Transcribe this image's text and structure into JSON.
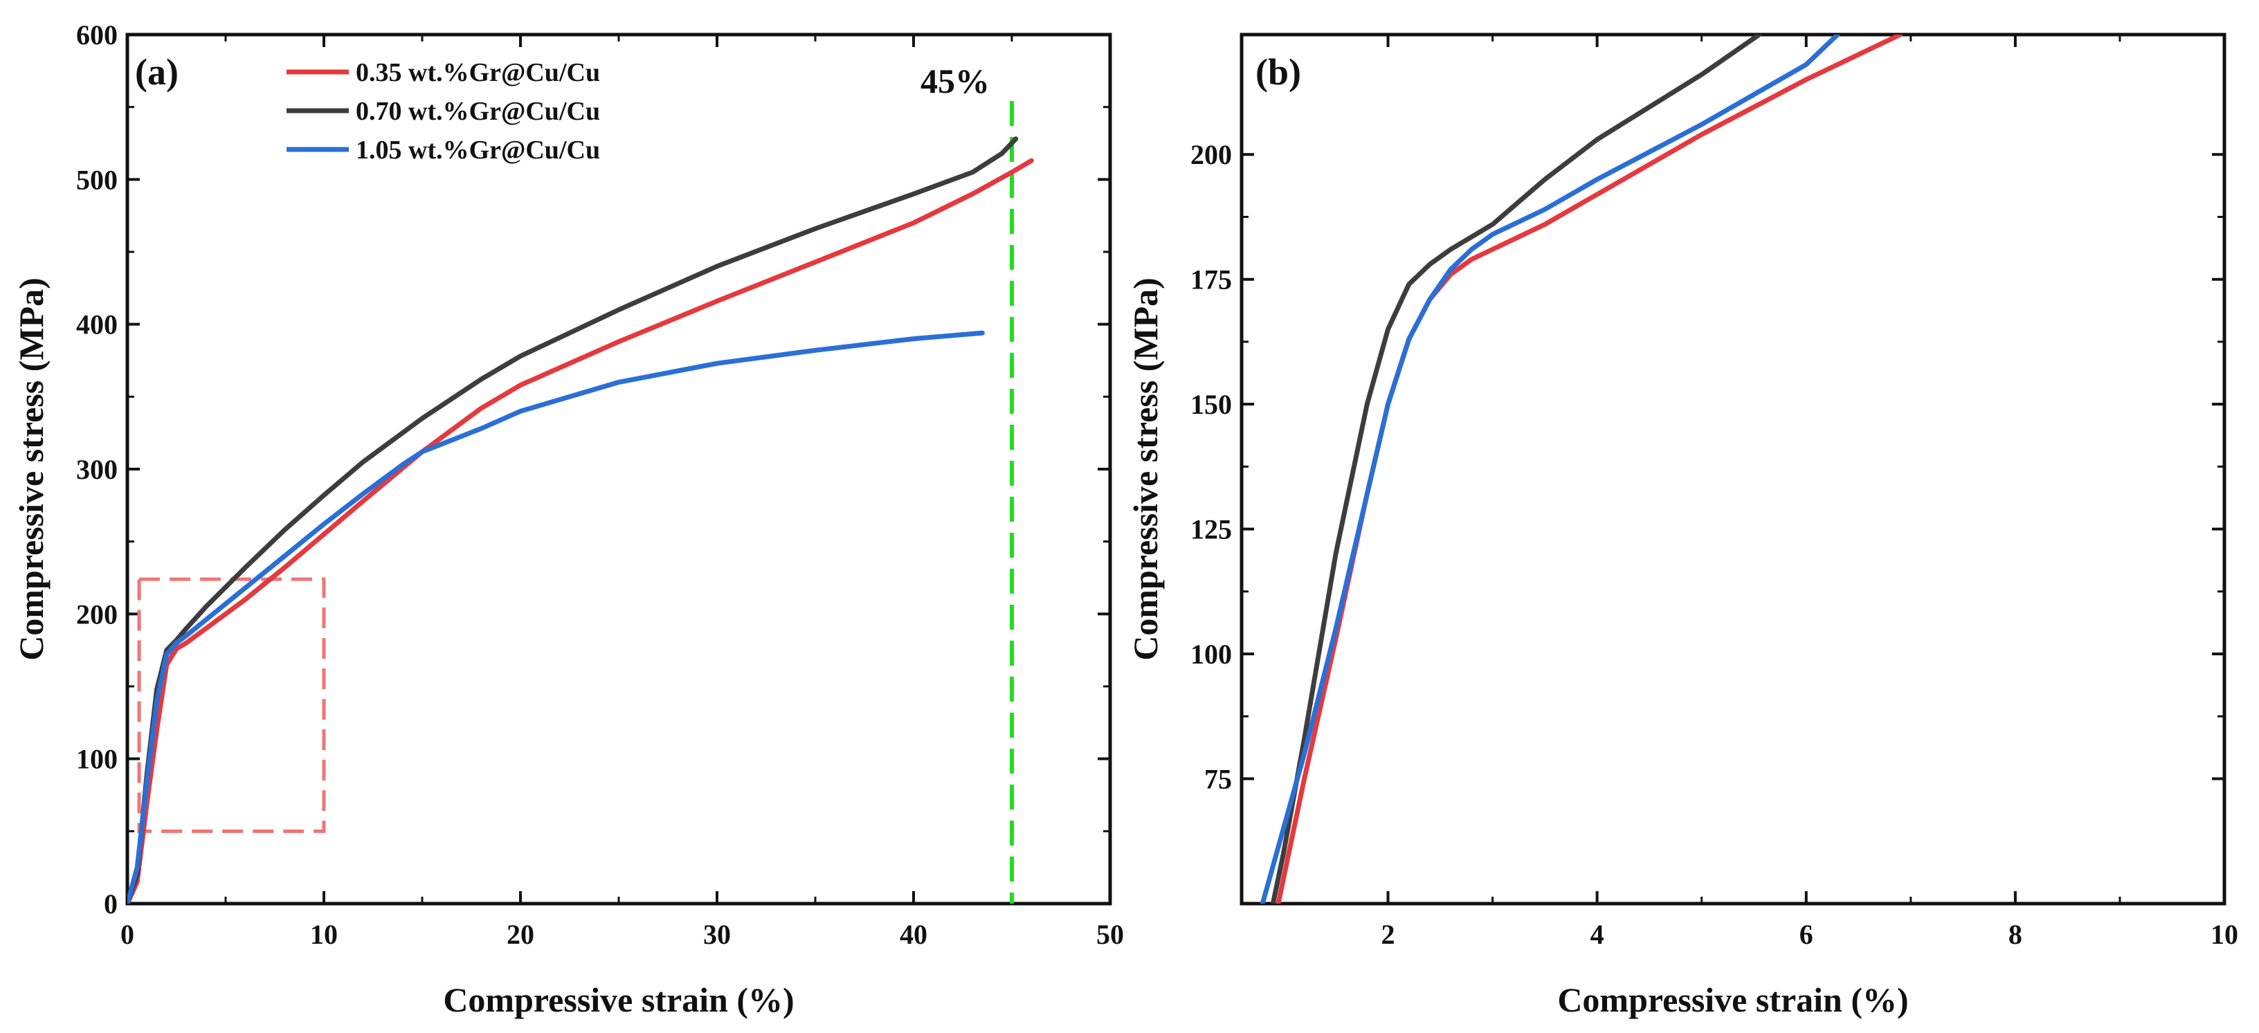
{
  "chart_data": [
    {
      "panel": "(a)",
      "type": "line",
      "xlabel": "Compressive strain (%)",
      "ylabel": "Compressive stress (MPa)",
      "xlim": [
        0,
        50
      ],
      "ylim": [
        0,
        600
      ],
      "xticks": [
        0,
        10,
        20,
        30,
        40,
        50
      ],
      "yticks": [
        0,
        100,
        200,
        300,
        400,
        500,
        600
      ],
      "legend_position": "top-left",
      "annotation": {
        "text": "45%",
        "x": 45
      },
      "zoom_box": {
        "x": [
          0.6,
          10
        ],
        "y": [
          50,
          224
        ]
      },
      "series": [
        {
          "name": "0.35 wt.%Gr@Cu/Cu",
          "color": "#e5393e",
          "x": [
            0,
            0.5,
            1.0,
            1.5,
            2.0,
            2.5,
            3,
            4,
            6,
            8,
            10,
            12,
            15,
            18,
            20,
            25,
            30,
            35,
            40,
            43,
            45,
            46
          ],
          "y": [
            0,
            15,
            70,
            120,
            165,
            176,
            180,
            190,
            210,
            232,
            255,
            278,
            312,
            342,
            358,
            388,
            416,
            443,
            470,
            490,
            505,
            513
          ]
        },
        {
          "name": "0.70 wt.%Gr@Cu/Cu",
          "color": "#3d3d3d",
          "x": [
            0,
            0.5,
            1.0,
            1.5,
            2.0,
            2.5,
            3,
            4,
            6,
            8,
            10,
            12,
            15,
            18,
            20,
            25,
            30,
            35,
            40,
            43,
            44.5,
            45.2
          ],
          "y": [
            0,
            20,
            90,
            148,
            175,
            182,
            190,
            205,
            232,
            258,
            282,
            305,
            335,
            362,
            378,
            410,
            440,
            466,
            490,
            505,
            518,
            528
          ]
        },
        {
          "name": "1.05 wt.%Gr@Cu/Cu",
          "color": "#2a6fd6",
          "x": [
            0,
            0.5,
            1.0,
            1.5,
            2.0,
            2.5,
            3,
            4,
            6,
            8,
            10,
            12,
            14,
            15,
            18,
            20,
            25,
            30,
            35,
            40,
            43.5
          ],
          "y": [
            0,
            25,
            85,
            140,
            172,
            180,
            185,
            196,
            218,
            240,
            262,
            283,
            303,
            312,
            328,
            340,
            360,
            373,
            382,
            390,
            394
          ]
        }
      ]
    },
    {
      "panel": "(b)",
      "type": "line",
      "xlabel": "Compressive strain (%)",
      "ylabel": "Compressive stress (MPa)",
      "xlim": [
        0.6,
        10
      ],
      "ylim": [
        50,
        224
      ],
      "xticks": [
        2,
        4,
        6,
        8,
        10
      ],
      "yticks": [
        75,
        100,
        125,
        150,
        175,
        200
      ],
      "series": [
        {
          "name": "0.35 wt.%Gr@Cu/Cu",
          "color": "#e5393e",
          "x": [
            0.95,
            1.2,
            1.5,
            1.8,
            2.0,
            2.2,
            2.4,
            2.6,
            2.8,
            3.0,
            3.5,
            4,
            5,
            6,
            6.9
          ],
          "y": [
            50,
            75,
            103,
            132,
            150,
            163,
            171,
            176,
            179,
            181,
            186,
            192,
            204,
            215,
            224
          ]
        },
        {
          "name": "0.70 wt.%Gr@Cu/Cu",
          "color": "#3d3d3d",
          "x": [
            0.9,
            1.0,
            1.2,
            1.5,
            1.8,
            2.0,
            2.2,
            2.4,
            2.6,
            3.0,
            3.5,
            4,
            5,
            5.55
          ],
          "y": [
            50,
            60,
            83,
            120,
            150,
            165,
            174,
            178,
            181,
            186,
            195,
            203,
            216,
            224
          ]
        },
        {
          "name": "1.05 wt.%Gr@Cu/Cu",
          "color": "#2a6fd6",
          "x": [
            0.8,
            1.0,
            1.2,
            1.5,
            1.8,
            2.0,
            2.2,
            2.4,
            2.6,
            2.8,
            3.0,
            3.5,
            4,
            5,
            6,
            6.3
          ],
          "y": [
            50,
            65,
            80,
            105,
            132,
            150,
            163,
            171,
            177,
            181,
            184,
            189,
            195,
            206,
            218,
            224
          ]
        }
      ]
    }
  ]
}
